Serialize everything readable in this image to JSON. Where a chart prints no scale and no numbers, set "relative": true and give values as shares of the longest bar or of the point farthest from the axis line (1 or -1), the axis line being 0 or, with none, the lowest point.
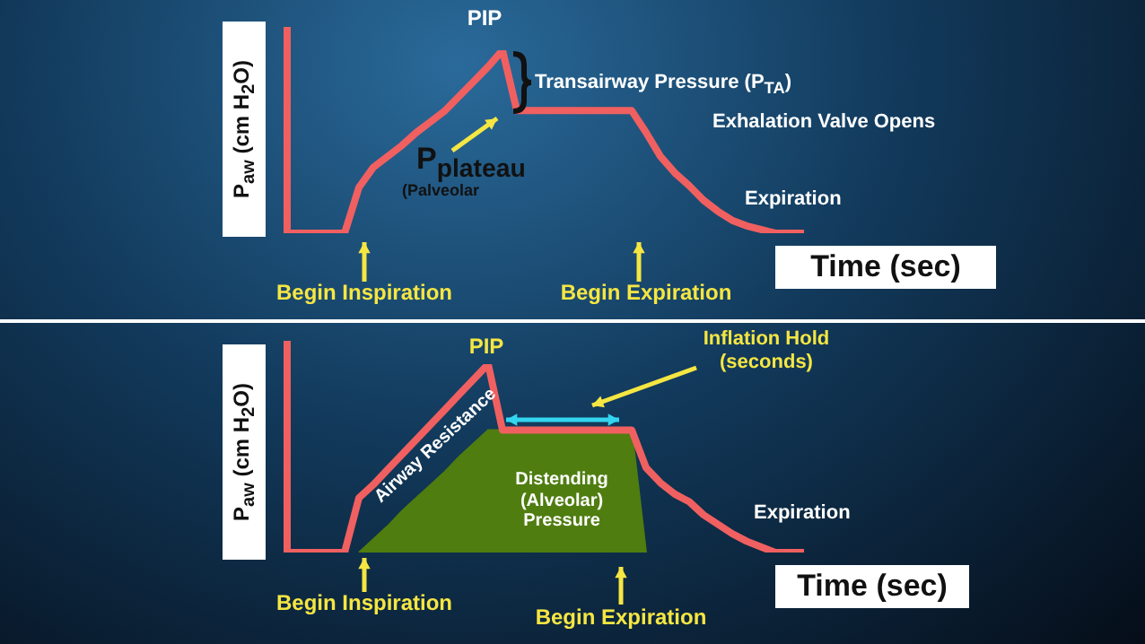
{
  "chart_data": [
    {
      "type": "line",
      "relative": true,
      "xlabel": "Time (sec)",
      "ylabel": "P$_{aw}$  (cm H$_{2}$O)",
      "categories": [
        null,
        null,
        null,
        null,
        null,
        null,
        null,
        null,
        null,
        null,
        null,
        null,
        null,
        null,
        null,
        null,
        null,
        null,
        null,
        null,
        null,
        null,
        null,
        null,
        null,
        null,
        null,
        null,
        null,
        null,
        null,
        null,
        null,
        null,
        null,
        null,
        null
      ],
      "annotations": [
        "PIP",
        "Transairway Pressure (P$_{TA}$)",
        "Exhalation Valve Opens",
        "P$_{plateau}$",
        "(Palveolar",
        "Expiration",
        "Begin Inspiration",
        "Begin Expiration"
      ],
      "series": [
        {
          "color": "#f06060",
          "values": [
            0,
            0,
            0,
            0,
            0,
            0.25,
            0.36,
            0.42,
            0.48,
            0.55,
            0.61,
            0.67,
            0.75,
            0.83,
            0.91,
            1,
            0.67,
            0.67,
            0.67,
            0.67,
            0.67,
            0.67,
            0.67,
            0.67,
            0.67,
            0.55,
            0.42,
            0.33,
            0.26,
            0.18,
            0.12,
            0.07,
            0.04,
            0.02,
            0,
            0,
            0
          ]
        }
      ]
    },
    {
      "type": "line",
      "relative": true,
      "xlabel": "Time (sec)",
      "ylabel": "P$_{aw}$  (cm H$_{2}$O)",
      "categories": [
        null,
        null,
        null,
        null,
        null,
        null,
        null,
        null,
        null,
        null,
        null,
        null,
        null,
        null,
        null,
        null,
        null,
        null,
        null,
        null,
        null,
        null,
        null,
        null,
        null,
        null,
        null,
        null,
        null,
        null,
        null,
        null,
        null,
        null,
        null,
        null,
        null
      ],
      "annotations": [
        "PIP",
        "Inflation Hold\n(seconds)",
        "Airway Resistance",
        "Distending\n(Alveolar)\nPressure",
        "Expiration",
        "Begin Inspiration",
        "Begin Expiration"
      ],
      "series": [
        {
          "type": "area",
          "color": "#4f7d10",
          "values": [
            null,
            null,
            null,
            null,
            null,
            0,
            0.07,
            0.14,
            0.22,
            0.29,
            0.36,
            0.43,
            0.51,
            0.58,
            0.65,
            0.65,
            0.65,
            0.65,
            0.65,
            0.65,
            0.65,
            0.65,
            0.65,
            0.65,
            0.65,
            0,
            null,
            null,
            null,
            null,
            null,
            null,
            null,
            null,
            null,
            null,
            null
          ]
        },
        {
          "color": "#f06060",
          "values": [
            0,
            0,
            0,
            0,
            0,
            0.29,
            0.36,
            0.44,
            0.52,
            0.6,
            0.68,
            0.76,
            0.84,
            0.92,
            1,
            0.65,
            0.65,
            0.65,
            0.65,
            0.65,
            0.65,
            0.65,
            0.65,
            0.65,
            0.65,
            0.45,
            0.37,
            0.31,
            0.27,
            0.2,
            0.15,
            0.1,
            0.06,
            0.03,
            0,
            0,
            0
          ]
        }
      ]
    }
  ]
}
